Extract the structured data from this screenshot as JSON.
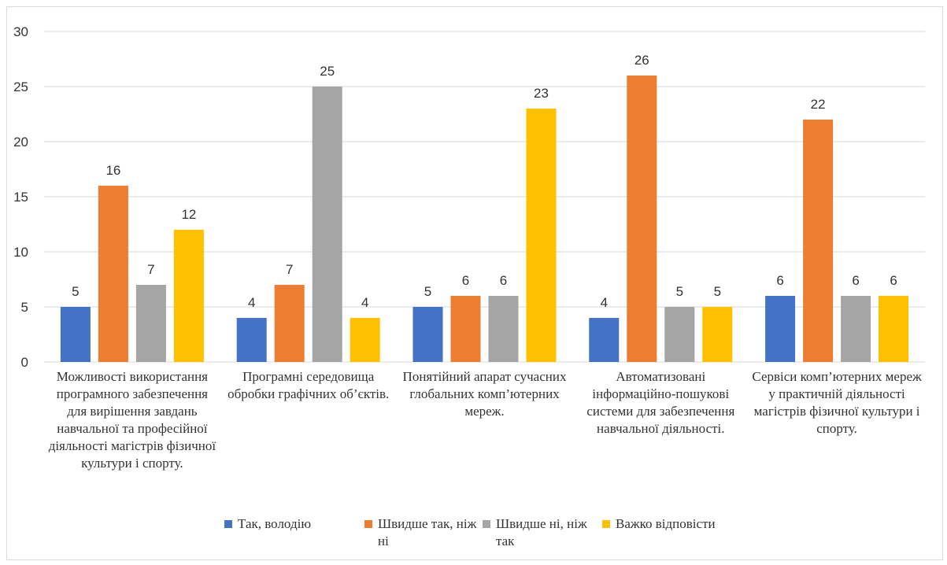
{
  "chart_data": {
    "type": "bar",
    "title": "",
    "xlabel": "",
    "ylabel": "",
    "ylim": [
      0,
      30
    ],
    "yticks": [
      0,
      5,
      10,
      15,
      20,
      25,
      30
    ],
    "grid": true,
    "legend_position": "bottom",
    "data_labels": true,
    "categories": [
      "Можливості використання програмного забезпечення для вирішення завдань навчальної та професійної діяльності магістрів фізичної культури і спорту.",
      "Програмні середовища обробки графічних об’єктів.",
      "Понятійний апарат сучасних глобальних комп’ютерних мереж.",
      "Автоматизовані інформаційно-пошукові системи для забезпечення навчальної діяльності.",
      "Сервіси комп’ютерних мереж у практичній діяльності магістрів фізичної культури і спорту."
    ],
    "series": [
      {
        "name": "Так, володію",
        "color": "#4472c4",
        "values": [
          5,
          4,
          5,
          4,
          6
        ]
      },
      {
        "name": "Швидше так, ніж ні",
        "color": "#ed7d31",
        "values": [
          16,
          7,
          6,
          26,
          22
        ]
      },
      {
        "name": "Швидше ні, ніж так",
        "color": "#a5a5a5",
        "values": [
          7,
          25,
          6,
          5,
          6
        ]
      },
      {
        "name": "Важко відповісти",
        "color": "#ffc000",
        "values": [
          12,
          4,
          23,
          5,
          6
        ]
      }
    ]
  }
}
